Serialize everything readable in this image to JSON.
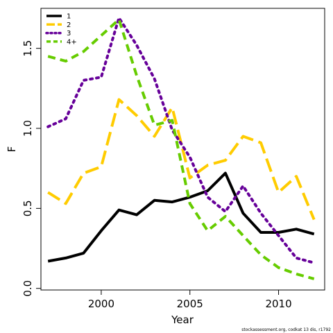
{
  "chart_data": {
    "type": "line",
    "xlabel": "Year",
    "ylabel": "F",
    "xlim": [
      1996.6,
      2012.6
    ],
    "ylim": [
      -0.01,
      1.75
    ],
    "x_ticks": [
      2000,
      2005,
      2010
    ],
    "x_tick_labels": [
      "2000",
      "2005",
      "2010"
    ],
    "y_ticks": [
      0.0,
      0.5,
      1.0,
      1.5
    ],
    "y_tick_labels": [
      "0.0",
      "0.5",
      "1.0",
      "1.5"
    ],
    "legend_position": "top-left",
    "x": [
      1997,
      1998,
      1999,
      2000,
      2001,
      2002,
      2003,
      2004,
      2005,
      2006,
      2007,
      2008,
      2009,
      2010,
      2011,
      2012
    ],
    "series": [
      {
        "name": "1",
        "color": "#000000",
        "dash": "solid",
        "values": [
          0.17,
          0.19,
          0.22,
          0.36,
          0.49,
          0.46,
          0.55,
          0.54,
          0.57,
          0.61,
          0.72,
          0.47,
          0.35,
          0.35,
          0.37,
          0.34
        ]
      },
      {
        "name": "2",
        "color": "#FFCC00",
        "dash": "long-dash",
        "values": [
          0.6,
          0.53,
          0.72,
          0.76,
          1.18,
          1.08,
          0.95,
          1.13,
          0.69,
          0.77,
          0.8,
          0.95,
          0.91,
          0.6,
          0.7,
          0.43
        ]
      },
      {
        "name": "3",
        "color": "#660099",
        "dash": "dot",
        "values": [
          1.01,
          1.06,
          1.3,
          1.32,
          1.69,
          1.52,
          1.31,
          0.99,
          0.82,
          0.57,
          0.48,
          0.64,
          0.47,
          0.33,
          0.19,
          0.16
        ]
      },
      {
        "name": "4+",
        "color": "#66CC00",
        "dash": "dash",
        "values": [
          1.45,
          1.42,
          1.48,
          1.58,
          1.68,
          1.33,
          1.02,
          1.05,
          0.53,
          0.36,
          0.45,
          0.33,
          0.21,
          0.13,
          0.09,
          0.06
        ]
      }
    ]
  },
  "footer_text": "stockassessment.org, codkat 13 dis, r1792"
}
